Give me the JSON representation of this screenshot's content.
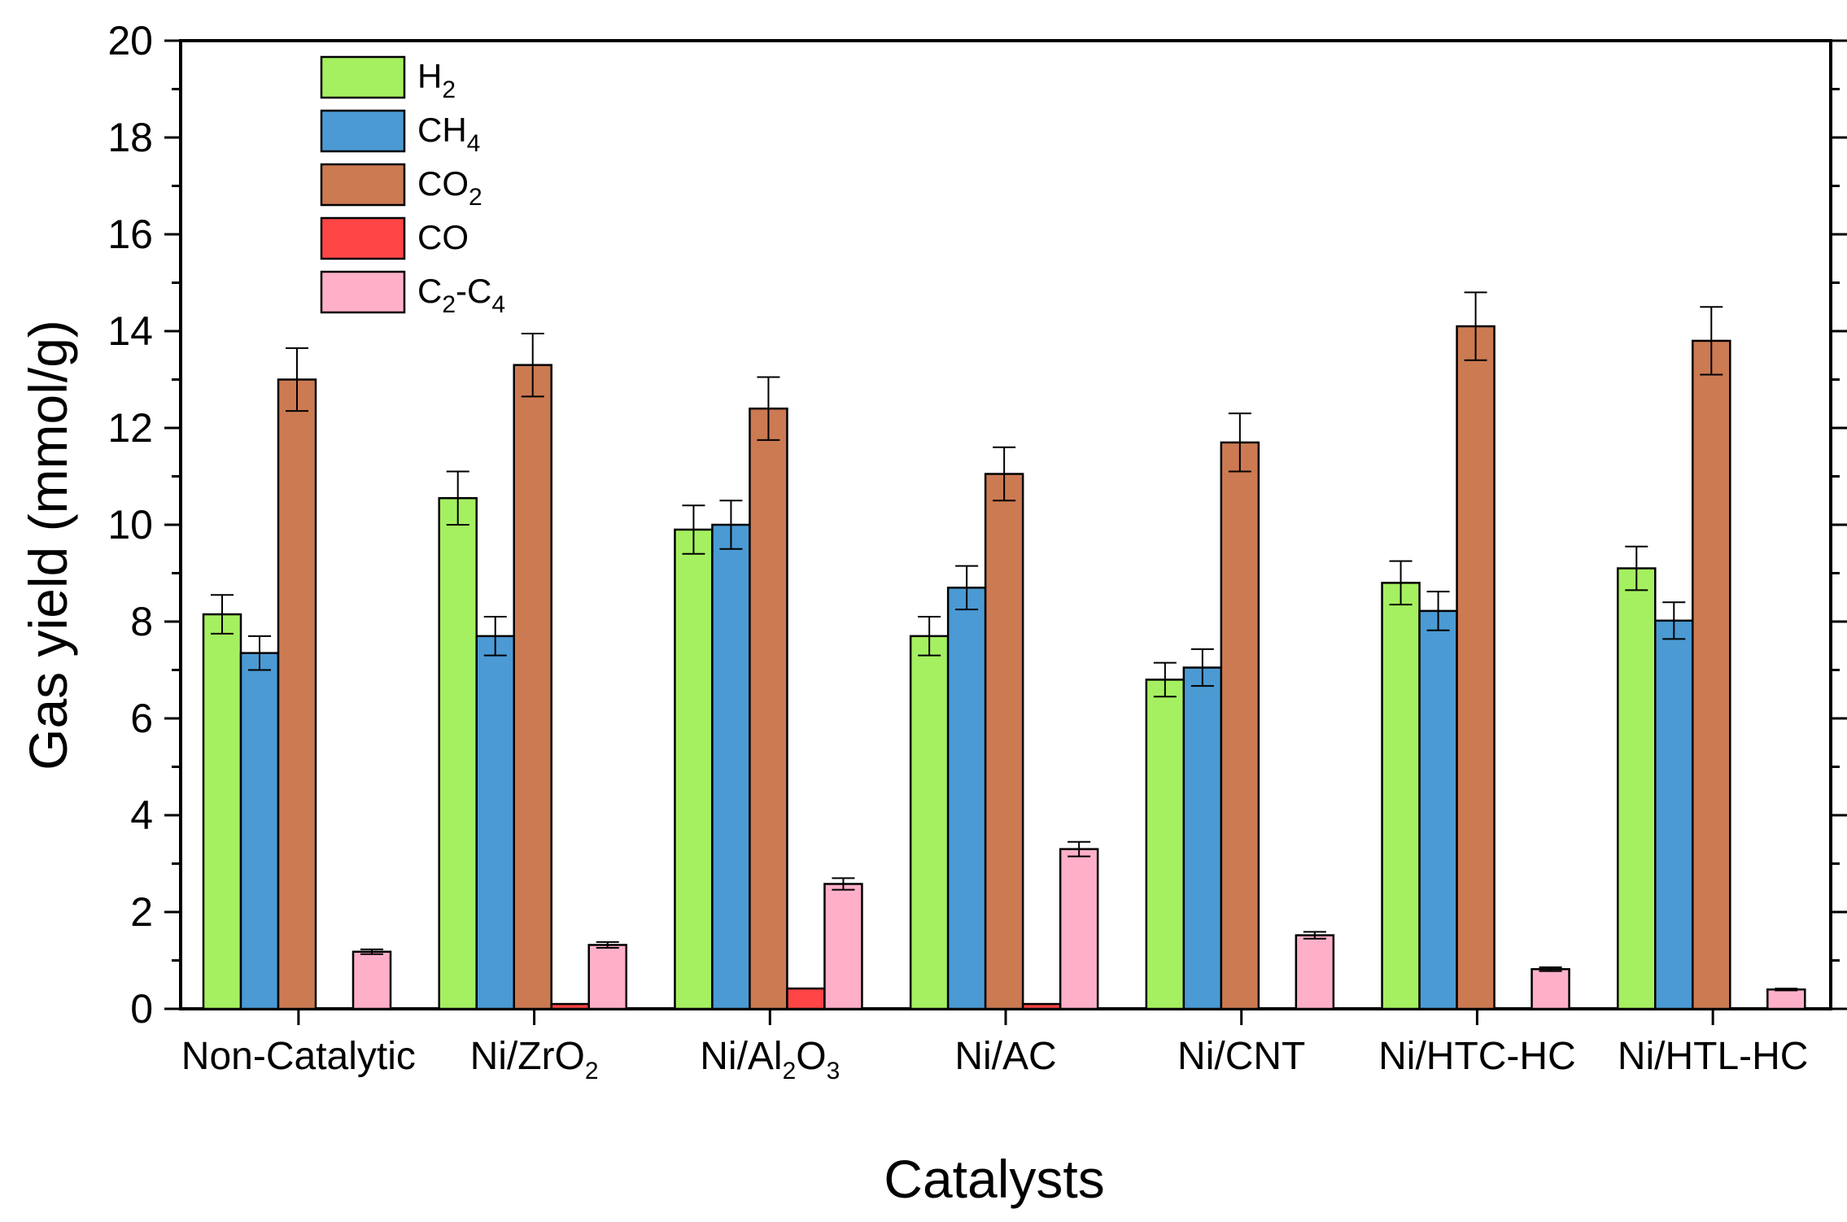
{
  "chart_data": {
    "type": "bar",
    "xlabel": "Catalysts",
    "ylabel": "Gas yield (mmol/g)",
    "ylim": [
      0,
      20
    ],
    "yticks": [
      0,
      2,
      4,
      6,
      8,
      10,
      12,
      14,
      16,
      18,
      20
    ],
    "yminor_step": 1,
    "grid": false,
    "legend_position": "top-left",
    "categories": [
      {
        "label": "Non-Catalytic",
        "base": "Non-Catalytic"
      },
      {
        "label": "Ni/ZrO2",
        "base": "Ni/ZrO",
        "sub": "2"
      },
      {
        "label": "Ni/Al2O3",
        "parts": [
          [
            "Ni/Al",
            ""
          ],
          [
            "2",
            "sub"
          ],
          [
            "O",
            ""
          ],
          [
            "3",
            "sub"
          ]
        ]
      },
      {
        "label": "Ni/AC",
        "base": "Ni/AC"
      },
      {
        "label": "Ni/CNT",
        "base": "Ni/CNT"
      },
      {
        "label": "Ni/HTC-HC",
        "base": "Ni/HTC-HC"
      },
      {
        "label": "Ni/HTL-HC",
        "base": "Ni/HTL-HC"
      }
    ],
    "series": [
      {
        "name": "H2",
        "parts": [
          [
            "H",
            ""
          ],
          [
            "2",
            "sub"
          ]
        ],
        "color": "#a5f060",
        "values": [
          8.15,
          10.55,
          9.9,
          7.7,
          6.8,
          8.8,
          9.1
        ],
        "errors": [
          0.4,
          0.55,
          0.5,
          0.4,
          0.35,
          0.45,
          0.45
        ]
      },
      {
        "name": "CH4",
        "parts": [
          [
            "CH",
            ""
          ],
          [
            "4",
            "sub"
          ]
        ],
        "color": "#4b9ad3",
        "values": [
          7.35,
          7.7,
          10.0,
          8.7,
          7.05,
          8.22,
          8.02
        ],
        "errors": [
          0.35,
          0.4,
          0.5,
          0.45,
          0.38,
          0.4,
          0.38
        ]
      },
      {
        "name": "CO2",
        "parts": [
          [
            "CO",
            ""
          ],
          [
            "2",
            "sub"
          ]
        ],
        "color": "#cc7a52",
        "values": [
          13.0,
          13.3,
          12.4,
          11.05,
          11.7,
          14.1,
          13.8
        ],
        "errors": [
          0.65,
          0.65,
          0.65,
          0.55,
          0.6,
          0.7,
          0.7
        ]
      },
      {
        "name": "CO",
        "parts": [
          [
            "CO",
            ""
          ]
        ],
        "color": "#ff4545",
        "values": [
          0,
          0.1,
          0.42,
          0.1,
          0,
          0,
          0
        ],
        "errors": [
          0,
          0,
          0,
          0,
          0,
          0,
          0
        ]
      },
      {
        "name": "C2-C4",
        "parts": [
          [
            "C",
            ""
          ],
          [
            "2",
            "sub"
          ],
          [
            "-C",
            ""
          ],
          [
            "4",
            "sub"
          ]
        ],
        "color": "#ffb0c9",
        "values": [
          1.18,
          1.32,
          2.58,
          3.3,
          1.52,
          0.82,
          0.4
        ],
        "errors": [
          0.05,
          0.06,
          0.12,
          0.15,
          0.07,
          0.04,
          0.02
        ]
      }
    ]
  }
}
